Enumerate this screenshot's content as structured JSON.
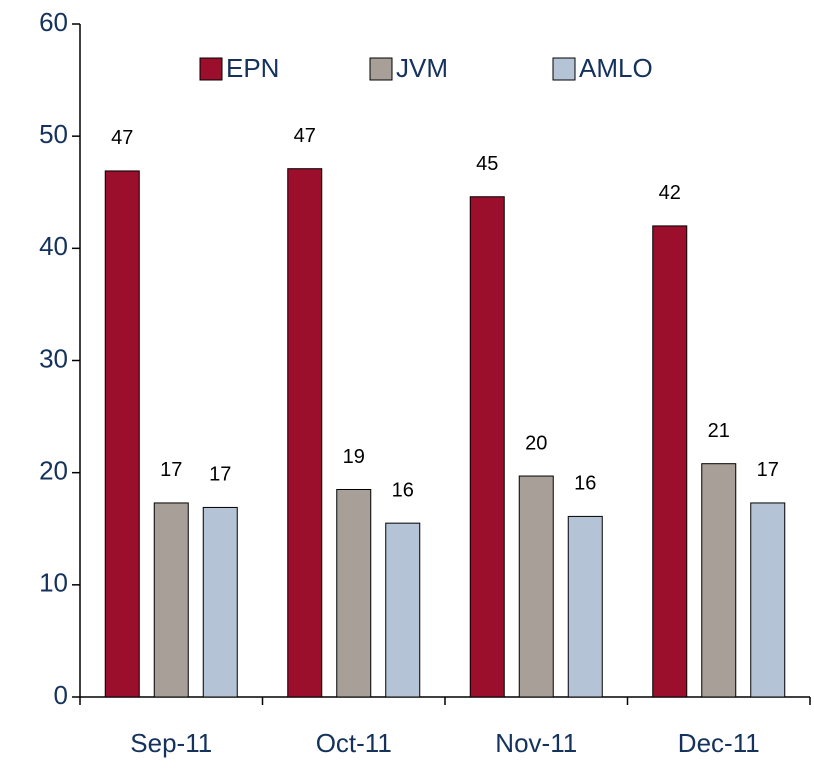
{
  "chart_data": {
    "type": "bar",
    "categories": [
      "Sep-11",
      "Oct-11",
      "Nov-11",
      "Dec-11"
    ],
    "series": [
      {
        "name": "EPN",
        "color": "#9b0e2c",
        "values": [
          46.9,
          47.1,
          44.6,
          42.0
        ],
        "value_labels": [
          "47",
          "47",
          "45",
          "42"
        ]
      },
      {
        "name": "JVM",
        "color": "#a89f98",
        "values": [
          17.3,
          18.5,
          19.7,
          20.8
        ],
        "value_labels": [
          "17",
          "19",
          "20",
          "21"
        ]
      },
      {
        "name": "AMLO",
        "color": "#b4c4d6",
        "values": [
          16.9,
          15.5,
          16.1,
          17.3
        ],
        "value_labels": [
          "17",
          "16",
          "16",
          "17"
        ]
      }
    ],
    "ylim": [
      0,
      60
    ],
    "yticks": [
      0,
      10,
      20,
      30,
      40,
      50,
      60
    ],
    "grid": false,
    "legend": "top"
  }
}
